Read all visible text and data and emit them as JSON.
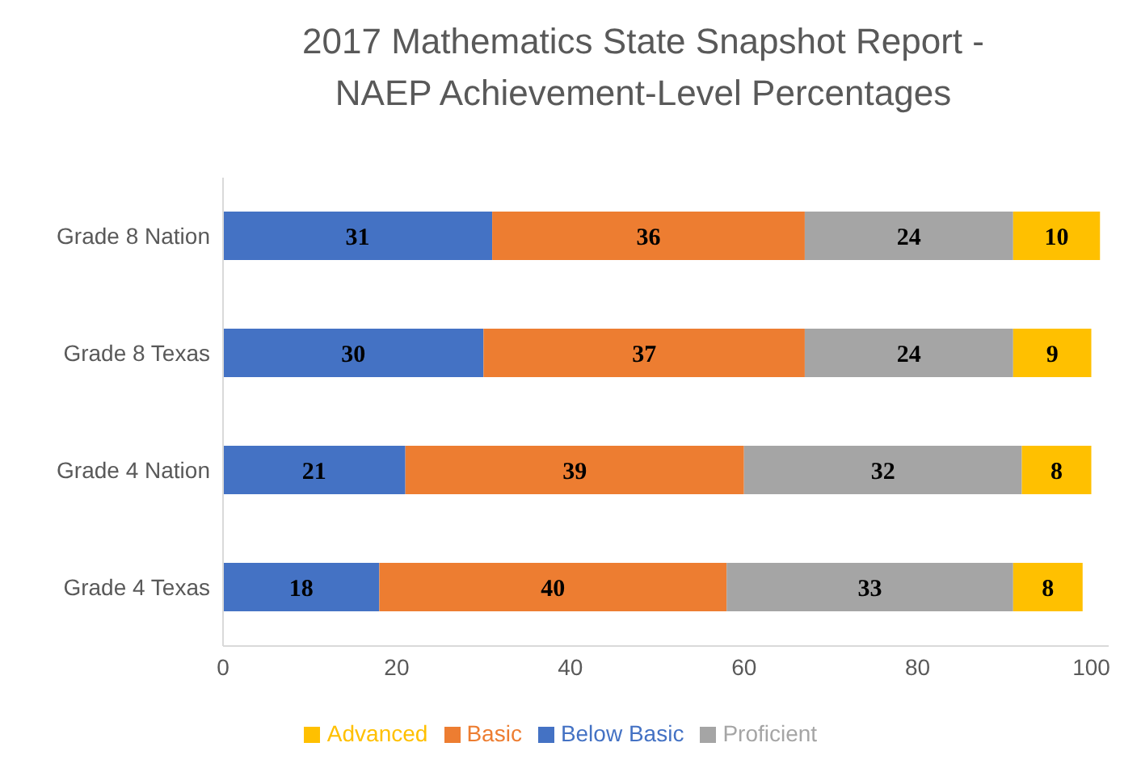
{
  "chart_data": {
    "type": "bar",
    "orientation": "horizontal",
    "stacked": true,
    "title": "2017 Mathematics State Snapshot Report - NAEP Achievement-Level Percentages",
    "categories": [
      "Grade 8 Nation",
      "Grade 8 Texas",
      "Grade 4 Nation",
      "Grade 4 Texas"
    ],
    "series": [
      {
        "name": "Below Basic",
        "color": "#4472c4",
        "values": [
          31,
          30,
          21,
          18
        ]
      },
      {
        "name": "Basic",
        "color": "#ed7d31",
        "values": [
          36,
          37,
          39,
          40
        ]
      },
      {
        "name": "Proficient",
        "color": "#a5a5a5",
        "values": [
          24,
          24,
          32,
          33
        ]
      },
      {
        "name": "Advanced",
        "color": "#ffc000",
        "values": [
          10,
          9,
          8,
          8
        ]
      }
    ],
    "xlim": [
      0,
      102
    ],
    "xticks": [
      0,
      20,
      40,
      60,
      80,
      100
    ],
    "data_labels": true,
    "grid": false,
    "legend": "bottom"
  }
}
